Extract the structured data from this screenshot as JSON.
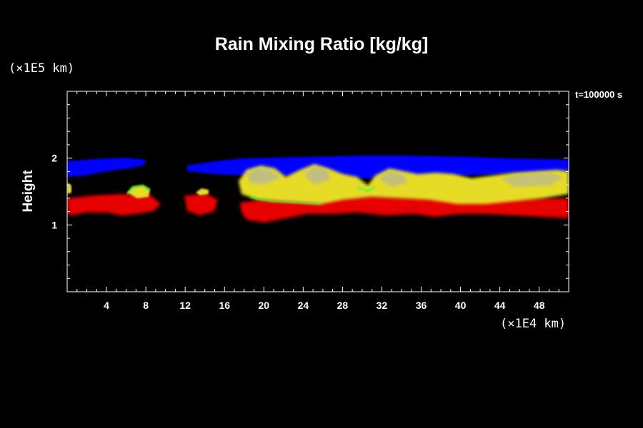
{
  "chart_data": {
    "type": "heatmap",
    "title": "Rain Mixing Ratio [kg/kg]",
    "time_label": "t=100000 s",
    "ylabel": "Height",
    "y_unit": "(×1E5 km)",
    "x_unit": "(×1E4 km)",
    "x_ticks": [
      "4",
      "8",
      "12",
      "16",
      "20",
      "24",
      "28",
      "32",
      "36",
      "40",
      "44",
      "48"
    ],
    "y_ticks": [
      "1",
      "2"
    ],
    "xlim": [
      0,
      51
    ],
    "ylim": [
      0,
      3
    ],
    "colors": {
      "blue": "#0000ff",
      "yellow": "#e6dc28",
      "red": "#e60000",
      "green": "#3cff3c",
      "grey": "#8c8c8c"
    }
  }
}
